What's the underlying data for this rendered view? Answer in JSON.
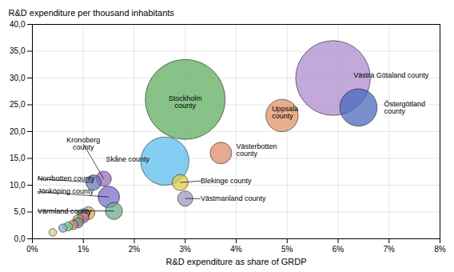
{
  "chart_data": {
    "type": "scatter",
    "x_label": "R&D expenditure as share of GRDP",
    "y_label": "R&D expenditure per thousand inhabitants",
    "labels": [
      "Stockholm\ncounty",
      "Västra Götaland county",
      "Uppsala\ncounty",
      "Östergötland\ncounty",
      "Skåne county",
      "Västerbotten\ncounty",
      "Blekinge county",
      "Västmanland county",
      "Kronoberg\ncounty",
      "Norrbotten county",
      "Jönköping county",
      "Värmland county",
      null,
      null,
      null,
      null,
      null,
      null,
      null,
      null,
      null
    ],
    "x": [
      0.03,
      0.059,
      0.049,
      0.064,
      0.026,
      0.037,
      0.029,
      0.03,
      0.014,
      0.012,
      0.015,
      0.016,
      0.004,
      0.006,
      0.007,
      0.008,
      0.009,
      0.009,
      0.01,
      0.01,
      0.011
    ],
    "values": [
      26.0,
      30.0,
      23.0,
      24.5,
      14.5,
      16.0,
      10.5,
      7.5,
      11.2,
      10.5,
      7.8,
      5.2,
      1.2,
      2.0,
      2.3,
      2.6,
      3.0,
      3.5,
      4.0,
      4.5,
      4.8
    ],
    "sizes": [
      5500,
      4800,
      900,
      1200,
      2000,
      400,
      220,
      200,
      200,
      200,
      400,
      250,
      50,
      60,
      70,
      80,
      90,
      100,
      110,
      120,
      140
    ],
    "colors": [
      "#5aaa5a",
      "#aa88cc",
      "#e09060",
      "#4466bb",
      "#55bbee",
      "#dd8866",
      "#ddcc44",
      "#9999bb",
      "#9966bb",
      "#6677bb",
      "#7766cc",
      "#66aa88",
      "#ddcc88",
      "#88aacc",
      "#66cc88",
      "#cc8866",
      "#7788aa",
      "#aabb55",
      "#cc6688",
      "#88bbdd",
      "#ddaa55"
    ],
    "xlim": [
      0,
      0.08
    ],
    "ylim": [
      0,
      40
    ],
    "xticks": [
      {
        "value": 0,
        "label": "0%"
      },
      {
        "value": 0.01,
        "label": "1%"
      },
      {
        "value": 0.02,
        "label": "2%"
      },
      {
        "value": 0.03,
        "label": "3%"
      },
      {
        "value": 0.04,
        "label": "4%"
      },
      {
        "value": 0.05,
        "label": "5%"
      },
      {
        "value": 0.06,
        "label": "6%"
      },
      {
        "value": 0.07,
        "label": "7%"
      },
      {
        "value": 0.08,
        "label": "8%"
      }
    ],
    "yticks": [
      {
        "value": 0,
        "label": "0,0"
      },
      {
        "value": 5,
        "label": "5,0"
      },
      {
        "value": 10,
        "label": "10,0"
      },
      {
        "value": 15,
        "label": "15,0"
      },
      {
        "value": 20,
        "label": "20,0"
      },
      {
        "value": 25,
        "label": "25,0"
      },
      {
        "value": 30,
        "label": "30,0"
      },
      {
        "value": 35,
        "label": "35,0"
      },
      {
        "value": 40,
        "label": "40,0"
      }
    ],
    "grid": true
  }
}
